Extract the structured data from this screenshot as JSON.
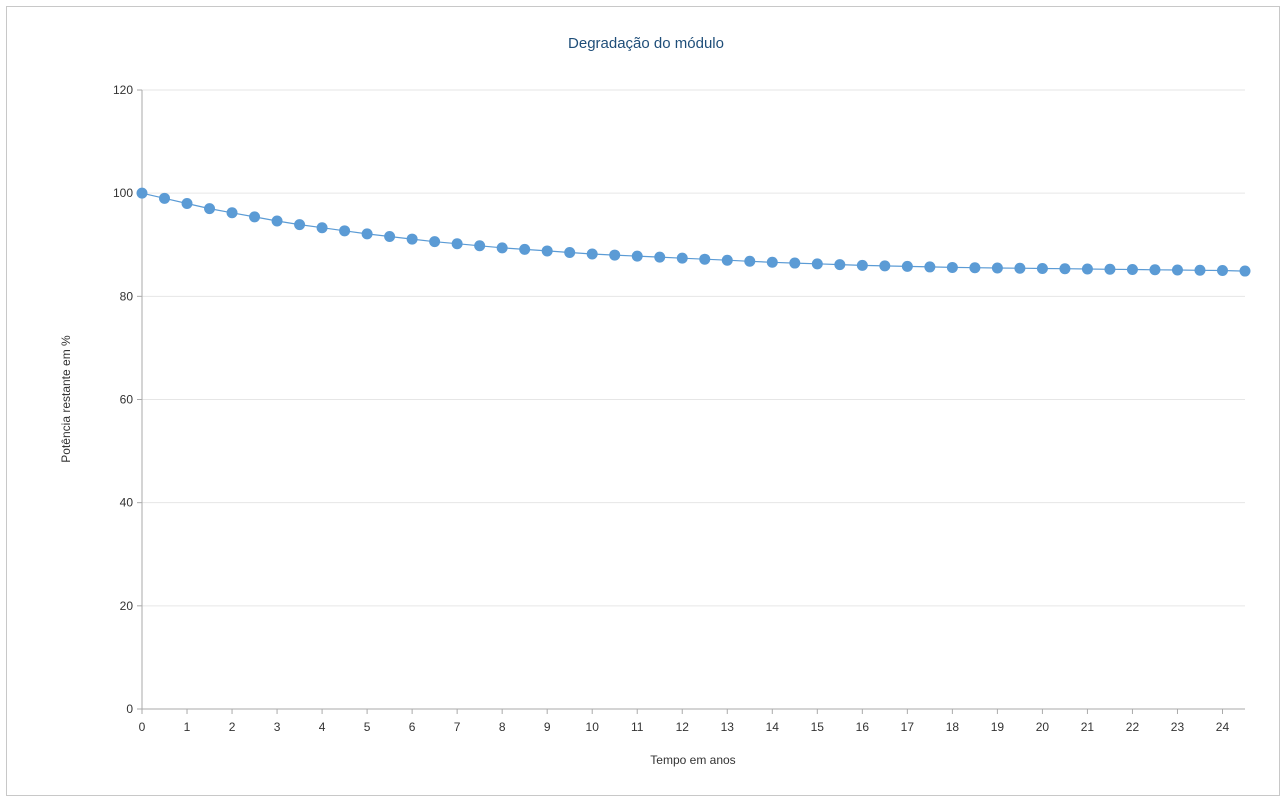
{
  "chart_data": {
    "type": "line",
    "title": "Degradação do módulo",
    "xlabel": "Tempo em anos",
    "ylabel": "Potência restante em %",
    "xlim": [
      0,
      24.5
    ],
    "ylim": [
      0,
      120
    ],
    "x_ticks": [
      0,
      1,
      2,
      3,
      4,
      5,
      6,
      7,
      8,
      9,
      10,
      11,
      12,
      13,
      14,
      15,
      16,
      17,
      18,
      19,
      20,
      21,
      22,
      23,
      24
    ],
    "y_ticks": [
      0,
      20,
      40,
      60,
      80,
      100,
      120
    ],
    "grid": true,
    "series": [
      {
        "color": "#5b9bd5",
        "x": [
          0,
          0.5,
          1,
          1.5,
          2,
          2.5,
          3,
          3.5,
          4,
          4.5,
          5,
          5.5,
          6,
          6.5,
          7,
          7.5,
          8,
          8.5,
          9,
          9.5,
          10,
          10.5,
          11,
          11.5,
          12,
          12.5,
          13,
          13.5,
          14,
          14.5,
          15,
          15.5,
          16,
          16.5,
          17,
          17.5,
          18,
          18.5,
          19,
          19.5,
          20,
          20.5,
          21,
          21.5,
          22,
          22.5,
          23,
          23.5,
          24,
          24.5
        ],
        "y": [
          100,
          99,
          98,
          97,
          96.2,
          95.4,
          94.6,
          93.9,
          93.3,
          92.7,
          92.1,
          91.6,
          91.1,
          90.6,
          90.2,
          89.8,
          89.4,
          89.1,
          88.8,
          88.5,
          88.2,
          88,
          87.8,
          87.6,
          87.4,
          87.2,
          87,
          86.8,
          86.6,
          86.45,
          86.3,
          86.15,
          86,
          85.9,
          85.8,
          85.7,
          85.6,
          85.55,
          85.5,
          85.45,
          85.4,
          85.35,
          85.3,
          85.25,
          85.2,
          85.15,
          85.1,
          85.05,
          85,
          84.9
        ]
      }
    ]
  }
}
